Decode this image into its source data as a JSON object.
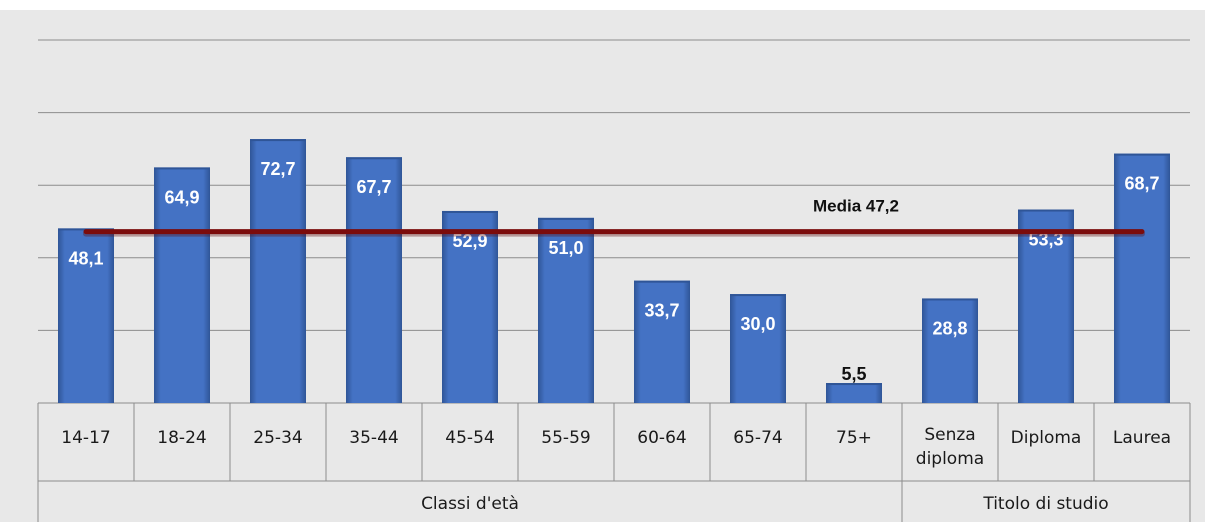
{
  "chart_data": {
    "type": "bar",
    "categories": [
      "14-17",
      "18-24",
      "25-34",
      "35-44",
      "45-54",
      "55-59",
      "60-64",
      "65-74",
      "75+",
      "Senza diploma",
      "Diploma",
      "Laurea"
    ],
    "category_lines": [
      [
        "14-17"
      ],
      [
        "18-24"
      ],
      [
        "25-34"
      ],
      [
        "35-44"
      ],
      [
        "45-54"
      ],
      [
        "55-59"
      ],
      [
        "60-64"
      ],
      [
        "65-74"
      ],
      [
        "75+"
      ],
      [
        "Senza",
        "diploma"
      ],
      [
        "Diploma"
      ],
      [
        "Laurea"
      ]
    ],
    "values": [
      48.1,
      64.9,
      72.7,
      67.7,
      52.9,
      51.0,
      33.7,
      30.0,
      5.5,
      28.8,
      53.3,
      68.7
    ],
    "value_labels": [
      "48,1",
      "64,9",
      "72,7",
      "67,7",
      "52,9",
      "51,0",
      "33,7",
      "30,0",
      "5,5",
      "28,8",
      "53,3",
      "68,7"
    ],
    "groups": [
      {
        "label": "Classi d'età",
        "count": 9
      },
      {
        "label": "Titolo di studio",
        "count": 3
      }
    ],
    "reference_line": {
      "value": 47.2,
      "label": "Media 47,2"
    },
    "ylim": [
      0,
      100
    ],
    "grid": true,
    "title": "",
    "xlabel": "",
    "ylabel": "",
    "colors": {
      "bar": "#4472c4",
      "bar_dark": "#2f5597",
      "reference_line": "#7b0c0c",
      "plot_background": "#e8e8e8",
      "grid": "#8c8c8c",
      "value_label": "#ffffff",
      "value_label_outside": "#111111"
    }
  }
}
